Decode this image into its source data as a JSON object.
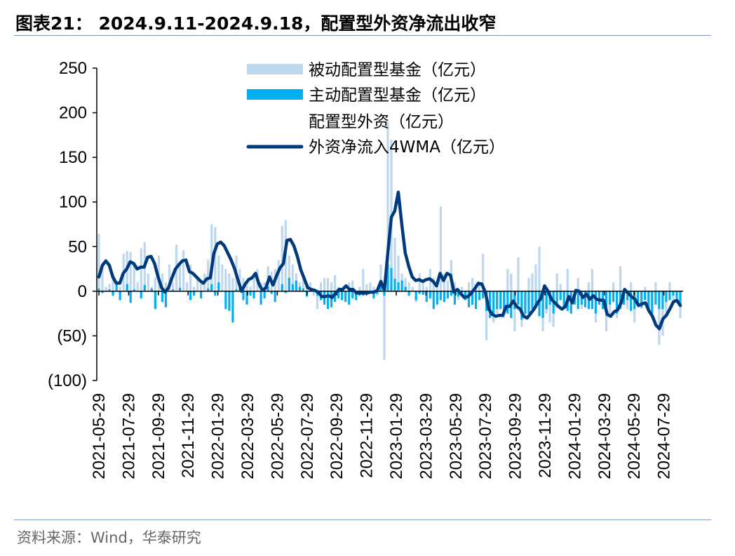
{
  "title": "图表21： 2024.9.11-2024.9.18，配置型外资净流出收窄",
  "source": "资料来源：Wind，华泰研究",
  "chart_data": {
    "type": "bar+line",
    "x_start": "2021-05-29",
    "x_end": "2024-09-18",
    "interval": "weekly",
    "ylim": [
      -100,
      250
    ],
    "yticks": [
      250,
      200,
      150,
      100,
      50,
      0,
      -50,
      -100
    ],
    "ytick_labels": [
      "250",
      "200",
      "150",
      "100",
      "50",
      "0",
      "(50)",
      "(100)"
    ],
    "xtick_labels": [
      "2021-05-29",
      "2021-07-29",
      "2021-09-29",
      "2021-11-29",
      "2022-01-29",
      "2022-03-29",
      "2022-05-29",
      "2022-07-29",
      "2022-09-29",
      "2022-11-29",
      "2023-01-29",
      "2023-03-29",
      "2023-05-29",
      "2023-07-29",
      "2023-09-29",
      "2023-11-29",
      "2024-01-29",
      "2024-03-29",
      "2024-05-29",
      "2024-07-29"
    ],
    "grid": false,
    "legend_position": "top-center",
    "series": [
      {
        "name": "被动配置型基金（亿元）",
        "kind": "bar",
        "color": "#bdd7ee",
        "values": [
          64,
          30,
          5,
          8,
          20,
          10,
          5,
          42,
          45,
          44,
          30,
          10,
          48,
          55,
          20,
          5,
          15,
          40,
          20,
          10,
          30,
          10,
          52,
          30,
          46,
          10,
          30,
          5,
          15,
          10,
          20,
          35,
          75,
          72,
          40,
          30,
          25,
          20,
          15,
          40,
          25,
          15,
          10,
          5,
          20,
          25,
          10,
          10,
          28,
          22,
          25,
          35,
          73,
          80,
          40,
          30,
          20,
          10,
          15,
          5,
          10,
          -5,
          -20,
          10,
          15,
          15,
          10,
          18,
          5,
          -10,
          -8,
          10,
          12,
          -5,
          5,
          25,
          8,
          10,
          5,
          -5,
          30,
          -77,
          190,
          170,
          60,
          40,
          20,
          15,
          10,
          5,
          -12,
          20,
          10,
          5,
          25,
          15,
          12,
          95,
          20,
          12,
          35,
          10,
          -10,
          5,
          -5,
          10,
          15,
          8,
          10,
          42,
          -55,
          -20,
          -35,
          -25,
          -15,
          -30,
          25,
          20,
          -45,
          38,
          -40,
          -30,
          15,
          20,
          30,
          50,
          -45,
          -25,
          -35,
          -40,
          20,
          8,
          -20,
          25,
          -20,
          -10,
          15,
          -20,
          -15,
          10,
          25,
          -35,
          -10,
          -20,
          -45,
          -25,
          10,
          -30,
          28,
          -15,
          -20,
          10,
          -35,
          -5,
          -20,
          5,
          -15,
          -30,
          10,
          -60,
          -50,
          -25,
          10,
          -10,
          -5,
          -30
        ]
      },
      {
        "name": "主动配置型基金（亿元）",
        "kind": "bar",
        "color": "#00b0f0",
        "values": [
          3,
          -2,
          0,
          2,
          -5,
          8,
          -10,
          0,
          8,
          -13,
          2,
          0,
          -8,
          7,
          0,
          3,
          -20,
          0,
          -12,
          -18,
          0,
          2,
          0,
          4,
          0,
          0,
          -10,
          -5,
          0,
          -8,
          0,
          3,
          8,
          -5,
          10,
          0,
          -20,
          -22,
          -35,
          2,
          3,
          -10,
          -15,
          -5,
          -8,
          0,
          -15,
          -8,
          5,
          -3,
          -12,
          0,
          8,
          -2,
          15,
          8,
          12,
          5,
          3,
          -6,
          0,
          3,
          -5,
          -10,
          -15,
          -20,
          -18,
          -12,
          -8,
          -10,
          -12,
          -15,
          -8,
          -10,
          -5,
          -5,
          -3,
          -2,
          -8,
          -3,
          12,
          -5,
          30,
          26,
          14,
          10,
          12,
          5,
          -5,
          0,
          -10,
          -3,
          -4,
          -12,
          -8,
          -20,
          -15,
          -10,
          -12,
          -8,
          -5,
          -15,
          -6,
          -4,
          -10,
          -18,
          -15,
          -20,
          -10,
          -8,
          -22,
          -30,
          -25,
          -20,
          -20,
          -25,
          -25,
          -30,
          -20,
          -15,
          -32,
          -25,
          -25,
          -20,
          -15,
          -28,
          -30,
          -20,
          -15,
          -25,
          -18,
          -10,
          -20,
          -22,
          -25,
          -15,
          -20,
          -15,
          -18,
          -20,
          -20,
          -25,
          -15,
          -20,
          -18,
          -15,
          -12,
          -25,
          -20,
          -15,
          -10,
          -22,
          -20,
          -15,
          -18,
          -10,
          -20,
          -25,
          -15,
          -20,
          -20,
          -12,
          -10,
          -5,
          -8,
          -15
        ]
      },
      {
        "name": "配置型外资（亿元）",
        "kind": "bar",
        "color": "#ffffff",
        "values": []
      },
      {
        "name": "外资净流入4WMA（亿元）",
        "kind": "line",
        "color": "#003a7d",
        "values": [
          16,
          29,
          34,
          29,
          16,
          9,
          9,
          20,
          25,
          33,
          31,
          25,
          27,
          27,
          38,
          39,
          31,
          16,
          4,
          -1,
          4,
          15,
          25,
          30,
          34,
          35,
          22,
          20,
          16,
          12,
          9,
          14,
          15,
          42,
          53,
          55,
          51,
          43,
          35,
          25,
          12,
          0,
          8,
          13,
          15,
          20,
          8,
          1,
          4,
          16,
          7,
          17,
          26,
          31,
          57,
          58,
          51,
          39,
          24,
          14,
          4,
          2,
          1,
          -1,
          -6,
          -6,
          -5,
          -7,
          -2,
          2,
          2,
          6,
          2,
          2,
          -2,
          -2,
          -2,
          -2,
          -1,
          -1,
          1,
          11,
          1,
          43,
          83,
          90,
          111,
          75,
          43,
          28,
          16,
          12,
          13,
          11,
          13,
          14,
          11,
          6,
          20,
          12,
          20,
          18,
          -1,
          2,
          -3,
          -7,
          -6,
          -2,
          3,
          9,
          8,
          -1,
          -20,
          -26,
          -28,
          -27,
          -27,
          -17,
          -17,
          -11,
          -17,
          -20,
          -28,
          -30,
          -25,
          -20,
          -13,
          -8,
          6,
          0,
          -9,
          -13,
          -17,
          -20,
          -17,
          -6,
          -13,
          1,
          0,
          -7,
          -3,
          -9,
          -5,
          -9,
          -10,
          -10,
          -26,
          -28,
          -23,
          -21,
          -13,
          2,
          -2,
          -6,
          -9,
          -16,
          -14,
          -13,
          -22,
          -28,
          -38,
          -42,
          -31,
          -27,
          -20,
          -12,
          -10,
          -16
        ]
      }
    ]
  }
}
